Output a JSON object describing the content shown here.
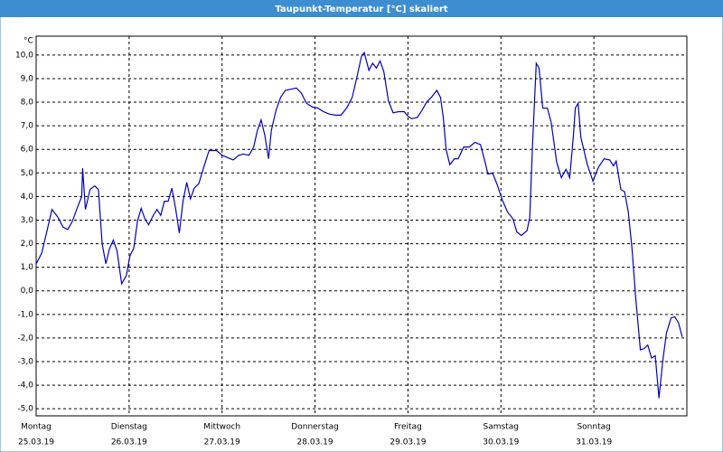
{
  "chart_data": {
    "type": "line",
    "title": "Taupunkt-Temperatur [°C] skaliert",
    "y_unit": "°C",
    "xlim": [
      0,
      7
    ],
    "ylim": [
      -5.3,
      10.8
    ],
    "grid": true,
    "grid_style": "dashed",
    "xticks": [
      {
        "value": 0,
        "label": "Montag",
        "date": "25.03.19"
      },
      {
        "value": 1,
        "label": "Dienstag",
        "date": "26.03.19"
      },
      {
        "value": 2,
        "label": "Mittwoch",
        "date": "27.03.19"
      },
      {
        "value": 3,
        "label": "Donnerstag",
        "date": "28.03.19"
      },
      {
        "value": 4,
        "label": "Freitag",
        "date": "29.03.19"
      },
      {
        "value": 5,
        "label": "Samstag",
        "date": "30.03.19"
      },
      {
        "value": 6,
        "label": "Sonntag",
        "date": "31.03.19"
      }
    ],
    "yticks": [
      {
        "value": 10,
        "label": "10,0"
      },
      {
        "value": 9,
        "label": "9,0"
      },
      {
        "value": 8,
        "label": "8,0"
      },
      {
        "value": 7,
        "label": "7,0"
      },
      {
        "value": 6,
        "label": "6,0"
      },
      {
        "value": 5,
        "label": "5,0"
      },
      {
        "value": 4,
        "label": "4,0"
      },
      {
        "value": 3,
        "label": "3,0"
      },
      {
        "value": 2,
        "label": "2,0"
      },
      {
        "value": 1,
        "label": "1,0"
      },
      {
        "value": 0,
        "label": "0,0"
      },
      {
        "value": -1,
        "label": "-1,0"
      },
      {
        "value": -2,
        "label": "-2,0"
      },
      {
        "value": -3,
        "label": "-3,0"
      },
      {
        "value": -4,
        "label": "-4,0"
      },
      {
        "value": -5,
        "label": "-5,0"
      }
    ],
    "color": "#0000c0",
    "x": [
      0,
      0.06,
      0.12,
      0.17,
      0.23,
      0.29,
      0.34,
      0.39,
      0.45,
      0.49,
      0.5,
      0.53,
      0.58,
      0.63,
      0.67,
      0.71,
      0.75,
      0.79,
      0.83,
      0.87,
      0.92,
      0.97,
      1.01,
      1.05,
      1.09,
      1.13,
      1.17,
      1.21,
      1.26,
      1.3,
      1.34,
      1.38,
      1.42,
      1.46,
      1.5,
      1.54,
      1.58,
      1.62,
      1.66,
      1.7,
      1.75,
      1.8,
      1.86,
      1.94,
      2.0,
      2.06,
      2.12,
      2.18,
      2.23,
      2.29,
      2.34,
      2.38,
      2.42,
      2.46,
      2.5,
      2.53,
      2.58,
      2.63,
      2.68,
      2.74,
      2.8,
      2.85,
      2.91,
      2.97,
      3.03,
      3.09,
      3.15,
      3.22,
      3.28,
      3.34,
      3.4,
      3.45,
      3.5,
      3.53,
      3.58,
      3.62,
      3.66,
      3.7,
      3.74,
      3.79,
      3.84,
      3.9,
      3.96,
      4.0,
      4.04,
      4.1,
      4.15,
      4.2,
      4.25,
      4.31,
      4.35,
      4.38,
      4.41,
      4.45,
      4.5,
      4.54,
      4.6,
      4.66,
      4.72,
      4.78,
      4.83,
      4.86,
      4.91,
      4.96,
      5.01,
      5.07,
      5.13,
      5.17,
      5.22,
      5.28,
      5.31,
      5.34,
      5.38,
      5.41,
      5.45,
      5.5,
      5.54,
      5.6,
      5.65,
      5.7,
      5.74,
      5.78,
      5.8,
      5.83,
      5.86,
      5.93,
      5.99,
      6.05,
      6.11,
      6.17,
      6.21,
      6.24,
      6.29,
      6.33,
      6.37,
      6.41,
      6.45,
      6.5,
      6.54,
      6.58,
      6.62,
      6.66,
      6.7,
      6.74,
      6.78,
      6.83,
      6.87,
      6.91,
      6.95
    ],
    "values": [
      1.14,
      1.6,
      2.6,
      3.45,
      3.15,
      2.7,
      2.6,
      2.95,
      3.6,
      4.0,
      5.2,
      3.45,
      4.3,
      4.45,
      4.3,
      2.0,
      1.15,
      1.8,
      2.15,
      1.7,
      0.3,
      0.65,
      1.5,
      1.8,
      2.95,
      3.5,
      3.05,
      2.8,
      3.2,
      3.45,
      3.2,
      3.8,
      3.8,
      4.35,
      3.5,
      2.45,
      3.8,
      4.6,
      3.9,
      4.35,
      4.55,
      5.2,
      5.95,
      5.95,
      5.75,
      5.65,
      5.55,
      5.75,
      5.8,
      5.75,
      6.1,
      6.8,
      7.25,
      6.6,
      5.6,
      6.8,
      7.65,
      8.2,
      8.5,
      8.55,
      8.6,
      8.4,
      7.95,
      7.8,
      7.75,
      7.6,
      7.5,
      7.45,
      7.45,
      7.75,
      8.2,
      9.05,
      9.95,
      10.1,
      9.35,
      9.65,
      9.45,
      9.75,
      9.3,
      8.05,
      7.55,
      7.6,
      7.6,
      7.4,
      7.3,
      7.35,
      7.65,
      8.0,
      8.2,
      8.5,
      8.2,
      7.35,
      6.0,
      5.35,
      5.6,
      5.6,
      6.1,
      6.1,
      6.3,
      6.2,
      5.45,
      4.95,
      5.0,
      4.5,
      3.9,
      3.35,
      3.05,
      2.5,
      2.35,
      2.55,
      3.1,
      6.2,
      9.65,
      9.45,
      7.75,
      7.75,
      7.15,
      5.45,
      4.8,
      5.15,
      4.8,
      6.6,
      7.75,
      7.95,
      6.5,
      5.35,
      4.65,
      5.25,
      5.6,
      5.55,
      5.3,
      5.5,
      4.3,
      4.2,
      3.35,
      1.8,
      -0.3,
      -2.5,
      -2.45,
      -2.3,
      -2.85,
      -2.75,
      -4.55,
      -3.0,
      -1.8,
      -1.15,
      -1.1,
      -1.35,
      -1.95
    ]
  }
}
